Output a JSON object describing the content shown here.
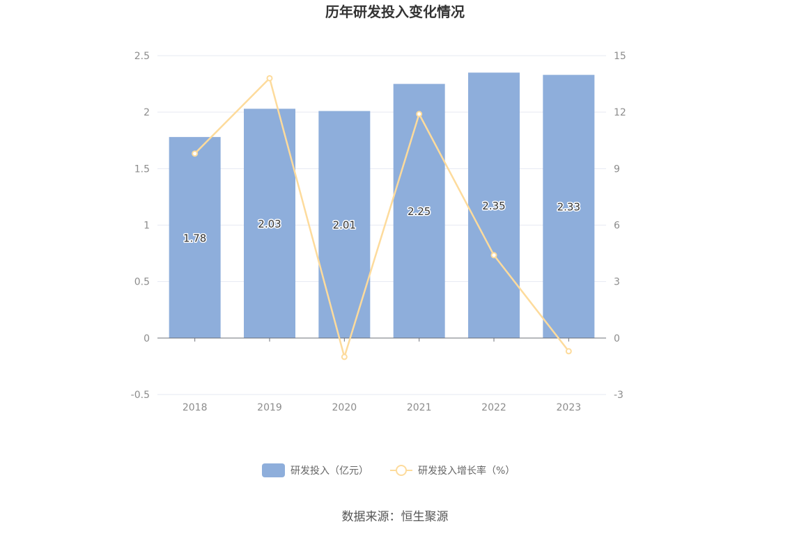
{
  "chart_data": {
    "type": "bar",
    "title": "历年研发投入变化情况",
    "categories": [
      "2018",
      "2019",
      "2020",
      "2021",
      "2022",
      "2023"
    ],
    "series": [
      {
        "name": "研发投入（亿元）",
        "type": "bar",
        "axis": "left",
        "values": [
          1.78,
          2.03,
          2.01,
          2.25,
          2.35,
          2.33
        ],
        "labels": [
          "1.78",
          "2.03",
          "2.01",
          "2.25",
          "2.35",
          "2.33"
        ],
        "color": "#8eaedb"
      },
      {
        "name": "研发投入增长率（%）",
        "type": "line",
        "axis": "right",
        "values": [
          9.8,
          13.8,
          -1.0,
          11.9,
          4.4,
          -0.7
        ],
        "color": "#fddb9c"
      }
    ],
    "y_left": {
      "range": [
        -0.5,
        2.5
      ],
      "ticks": [
        "-0.5",
        "0",
        "0.5",
        "1",
        "1.5",
        "2",
        "2.5"
      ],
      "tick_values": [
        -0.5,
        0,
        0.5,
        1,
        1.5,
        2,
        2.5
      ]
    },
    "y_right": {
      "range": [
        -3,
        15
      ],
      "ticks": [
        "-3",
        "0",
        "3",
        "6",
        "9",
        "12",
        "15"
      ],
      "tick_values": [
        -3,
        0,
        3,
        6,
        9,
        12,
        15
      ]
    },
    "grid": true,
    "legend_position": "bottom"
  },
  "source_text": "数据来源：恒生聚源"
}
